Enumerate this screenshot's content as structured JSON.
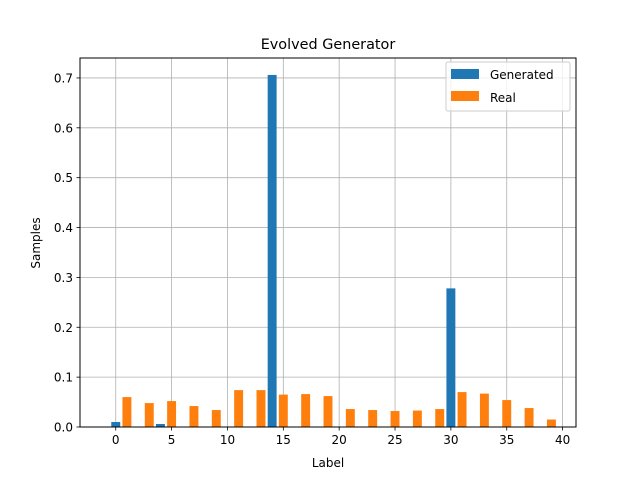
{
  "chart_data": {
    "type": "bar",
    "title": "Evolved Generator",
    "xlabel": "Label",
    "ylabel": "Samples",
    "xlim": [
      -3.2,
      41.2
    ],
    "ylim": [
      0,
      0.74
    ],
    "xticks": [
      0,
      5,
      10,
      15,
      20,
      25,
      30,
      35,
      40
    ],
    "yticks": [
      0.0,
      0.1,
      0.2,
      0.3,
      0.4,
      0.5,
      0.6,
      0.7
    ],
    "xtick_labels": [
      "0",
      "5",
      "10",
      "15",
      "20",
      "25",
      "30",
      "35",
      "40"
    ],
    "ytick_labels": [
      "0.0",
      "0.1",
      "0.2",
      "0.3",
      "0.4",
      "0.5",
      "0.6",
      "0.7"
    ],
    "grid": true,
    "legend_position": "top-right",
    "bar_width": 0.8,
    "series": [
      {
        "name": "Generated",
        "color": "#1f77b4",
        "x": [
          0,
          4,
          14,
          30
        ],
        "values": [
          0.01,
          0.006,
          0.706,
          0.278
        ]
      },
      {
        "name": "Real",
        "color": "#ff7f0e",
        "x": [
          1,
          3,
          5,
          7,
          9,
          11,
          13,
          15,
          17,
          19,
          21,
          23,
          25,
          27,
          29,
          31,
          33,
          35,
          37,
          39
        ],
        "values": [
          0.06,
          0.048,
          0.052,
          0.042,
          0.034,
          0.074,
          0.074,
          0.065,
          0.066,
          0.062,
          0.036,
          0.034,
          0.032,
          0.033,
          0.036,
          0.07,
          0.067,
          0.054,
          0.038,
          0.015
        ]
      }
    ]
  }
}
